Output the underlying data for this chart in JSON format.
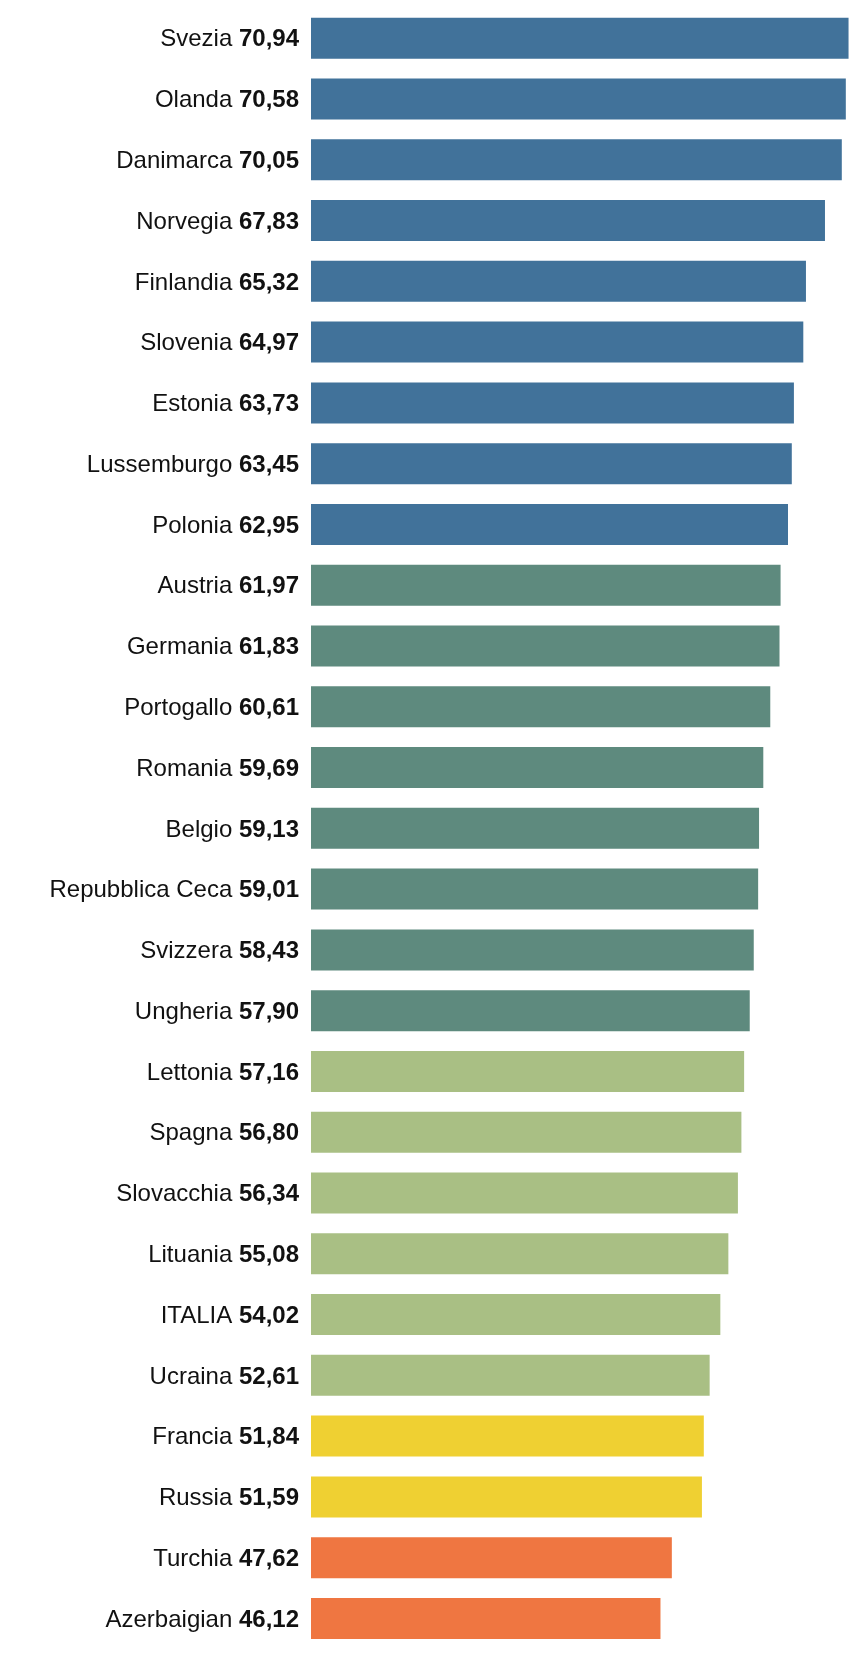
{
  "chart_data": {
    "type": "bar",
    "orientation": "horizontal",
    "categories": [
      "Svezia",
      "Olanda",
      "Danimarca",
      "Norvegia",
      "Finlandia",
      "Slovenia",
      "Estonia",
      "Lussemburgo",
      "Polonia",
      "Austria",
      "Germania",
      "Portogallo",
      "Romania",
      "Belgio",
      "Repubblica Ceca",
      "Svizzera",
      "Ungheria",
      "Lettonia",
      "Spagna",
      "Slovacchia",
      "Lituania",
      "ITALIA",
      "Ucraina",
      "Francia",
      "Russia",
      "Turchia",
      "Azerbaigian"
    ],
    "values": [
      70.94,
      70.58,
      70.05,
      67.83,
      65.32,
      64.97,
      63.73,
      63.45,
      62.95,
      61.97,
      61.83,
      60.61,
      59.69,
      59.13,
      59.01,
      58.43,
      57.9,
      57.16,
      56.8,
      56.34,
      55.08,
      54.02,
      52.61,
      51.84,
      51.59,
      47.62,
      46.12
    ],
    "value_labels": [
      "70,94",
      "70,58",
      "70,05",
      "67,83",
      "65,32",
      "64,97",
      "63,73",
      "63,45",
      "62,95",
      "61,97",
      "61,83",
      "60,61",
      "59,69",
      "59,13",
      "59,01",
      "58,43",
      "57,90",
      "57,16",
      "56,80",
      "56,34",
      "55,08",
      "54,02",
      "52,61",
      "51,84",
      "51,59",
      "47,62",
      "46,12"
    ],
    "colors": [
      "#41729a",
      "#41729a",
      "#41729a",
      "#41729a",
      "#41729a",
      "#41729a",
      "#41729a",
      "#41729a",
      "#41729a",
      "#5e8a7e",
      "#5e8a7e",
      "#5e8a7e",
      "#5e8a7e",
      "#5e8a7e",
      "#5e8a7e",
      "#5e8a7e",
      "#5e8a7e",
      "#a9bf84",
      "#a9bf84",
      "#a9bf84",
      "#a9bf84",
      "#a9bf84",
      "#a9bf84",
      "#efd032",
      "#efd032",
      "#ef7641",
      "#ef7641"
    ],
    "xlim": [
      0,
      71
    ]
  }
}
